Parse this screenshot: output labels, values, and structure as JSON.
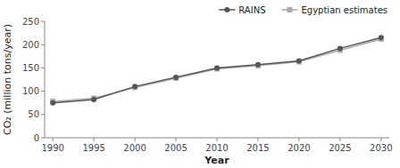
{
  "chart_data": {
    "type": "line",
    "x": [
      1990,
      1995,
      2000,
      2005,
      2010,
      2015,
      2020,
      2025,
      2030
    ],
    "series": [
      {
        "name": "RAINS",
        "color": "#555555",
        "marker": "circle",
        "values": [
          75,
          82,
          110,
          130,
          150,
          157,
          165,
          192,
          215
        ]
      },
      {
        "name": "Egyptian estimates",
        "color": "#aaaaaa",
        "marker": "square",
        "values": [
          78,
          85,
          108,
          128,
          148,
          155,
          163,
          188,
          212
        ]
      }
    ],
    "xlabel": "Year",
    "ylabel": "CO₂ (million tons/year)",
    "xlim": [
      1989,
      2031
    ],
    "ylim": [
      0,
      250
    ],
    "xticks": [
      1990,
      1995,
      2000,
      2005,
      2010,
      2015,
      2020,
      2025,
      2030
    ],
    "yticks": [
      0,
      50,
      100,
      150,
      200,
      250
    ],
    "grid": false,
    "legend": "top"
  }
}
